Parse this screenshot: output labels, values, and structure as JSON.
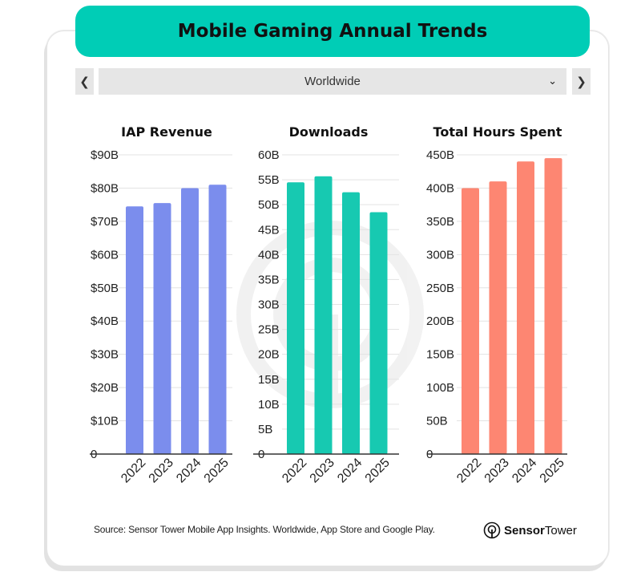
{
  "title": "Mobile Gaming Annual Trends",
  "region_selector": {
    "value": "Worldwide",
    "prev_icon": "chevron-left-icon",
    "next_icon": "chevron-right-icon",
    "dropdown_icon": "chevron-down-icon"
  },
  "footer": {
    "source": "Source: Sensor Tower Mobile App Insights. Worldwide, App Store and Google Play.",
    "brand_bold": "Sensor",
    "brand_regular": "Tower"
  },
  "colors": {
    "banner": "#00cdb6",
    "iap": "#7b8ded",
    "downloads": "#17c9b1",
    "hours": "#fd8672"
  },
  "chart_data": [
    {
      "type": "bar",
      "title": "IAP Revenue",
      "categories": [
        "2022",
        "2023",
        "2024",
        "2025"
      ],
      "values": [
        74.5,
        75.5,
        80,
        81
      ],
      "ylim": [
        0,
        90
      ],
      "yticks": [
        0,
        10,
        20,
        30,
        40,
        50,
        60,
        70,
        80,
        90
      ],
      "ytick_labels": [
        "0",
        "$10B",
        "$20B",
        "$30B",
        "$40B",
        "$50B",
        "$60B",
        "$70B",
        "$80B",
        "$90B"
      ],
      "color": "#7b8ded",
      "grid": true
    },
    {
      "type": "bar",
      "title": "Downloads",
      "categories": [
        "2022",
        "2023",
        "2024",
        "2025"
      ],
      "values": [
        54.5,
        55.7,
        52.5,
        48.5
      ],
      "ylim": [
        0,
        60
      ],
      "yticks": [
        0,
        5,
        10,
        15,
        20,
        25,
        30,
        35,
        40,
        45,
        50,
        55,
        60
      ],
      "ytick_labels": [
        "0",
        "5B",
        "10B",
        "15B",
        "20B",
        "25B",
        "30B",
        "35B",
        "40B",
        "45B",
        "50B",
        "55B",
        "60B"
      ],
      "color": "#17c9b1",
      "grid": true
    },
    {
      "type": "bar",
      "title": "Total Hours Spent",
      "categories": [
        "2022",
        "2023",
        "2024",
        "2025"
      ],
      "values": [
        400,
        410,
        440,
        445
      ],
      "ylim": [
        0,
        450
      ],
      "yticks": [
        0,
        50,
        100,
        150,
        200,
        250,
        300,
        350,
        400,
        450
      ],
      "ytick_labels": [
        "0",
        "50B",
        "100B",
        "150B",
        "200B",
        "250B",
        "300B",
        "350B",
        "400B",
        "450B"
      ],
      "color": "#fd8672",
      "grid": true
    }
  ]
}
